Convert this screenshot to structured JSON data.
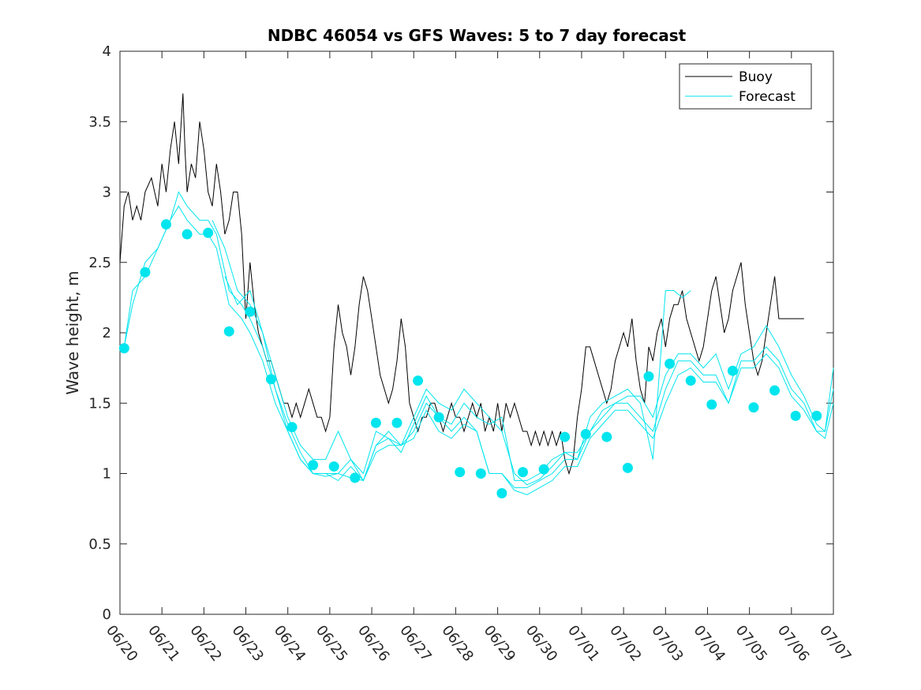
{
  "chart_data": {
    "type": "line",
    "title": "NDBC 46054 vs GFS Waves: 5 to 7 day forecast",
    "xlabel": "",
    "ylabel": "Wave height, m",
    "x_ticks": [
      "06/20",
      "06/21",
      "06/22",
      "06/23",
      "06/24",
      "06/25",
      "06/26",
      "06/27",
      "06/28",
      "06/29",
      "06/30",
      "07/01",
      "07/02",
      "07/03",
      "07/04",
      "07/05",
      "07/06",
      "07/07"
    ],
    "xlim_days": [
      0,
      17
    ],
    "ylim": [
      0,
      4
    ],
    "y_ticks": [
      "0",
      "0.5",
      "1",
      "1.5",
      "2",
      "2.5",
      "3",
      "3.5",
      "4"
    ],
    "legend": {
      "position": "top-right",
      "entries": [
        {
          "name": "Buoy",
          "color": "#000000"
        },
        {
          "name": "Forecast",
          "color": "#00e5ee"
        }
      ]
    },
    "colors": {
      "buoy": "#000000",
      "forecast": "#00e5ee",
      "axes": "#262626"
    },
    "series": [
      {
        "name": "Buoy",
        "x": [
          0,
          0.1,
          0.2,
          0.3,
          0.4,
          0.5,
          0.6,
          0.75,
          0.9,
          1.0,
          1.1,
          1.2,
          1.3,
          1.4,
          1.5,
          1.55,
          1.6,
          1.7,
          1.8,
          1.9,
          2.0,
          2.1,
          2.2,
          2.3,
          2.4,
          2.5,
          2.6,
          2.7,
          2.8,
          2.9,
          3.0,
          3.1,
          3.2,
          3.3,
          3.4,
          3.5,
          3.6,
          3.7,
          3.8,
          3.9,
          4.0,
          4.1,
          4.2,
          4.3,
          4.4,
          4.5,
          4.6,
          4.7,
          4.8,
          4.9,
          5.0,
          5.1,
          5.2,
          5.3,
          5.4,
          5.5,
          5.6,
          5.7,
          5.8,
          5.9,
          6.0,
          6.1,
          6.2,
          6.3,
          6.4,
          6.5,
          6.6,
          6.7,
          6.8,
          6.9,
          7.0,
          7.1,
          7.2,
          7.3,
          7.4,
          7.5,
          7.6,
          7.7,
          7.8,
          7.9,
          8.0,
          8.1,
          8.2,
          8.3,
          8.4,
          8.5,
          8.6,
          8.7,
          8.8,
          8.9,
          9.0,
          9.1,
          9.2,
          9.3,
          9.4,
          9.5,
          9.6,
          9.7,
          9.8,
          9.9,
          10.0,
          10.1,
          10.2,
          10.3,
          10.4,
          10.5,
          10.6,
          10.7,
          10.8,
          10.9,
          11.0,
          11.1,
          11.2,
          11.3,
          11.4,
          11.5,
          11.6,
          11.7,
          11.8,
          11.9,
          12.0,
          12.1,
          12.2,
          12.3,
          12.4,
          12.5,
          12.6,
          12.7,
          12.8,
          12.9,
          13.0,
          13.1,
          13.2,
          13.3,
          13.4,
          13.5,
          13.6,
          13.7,
          13.8,
          13.9,
          14.0,
          14.1,
          14.2,
          14.3,
          14.4,
          14.5,
          14.6,
          14.7,
          14.8,
          14.9,
          15.0,
          15.1,
          15.2,
          15.3,
          15.4,
          15.5,
          15.6,
          15.7,
          15.8,
          15.9,
          16.0,
          16.1,
          16.2,
          16.3
        ],
        "values": [
          2.5,
          2.9,
          3.0,
          2.8,
          2.9,
          2.8,
          3.0,
          3.1,
          2.9,
          3.2,
          3.0,
          3.3,
          3.5,
          3.2,
          3.7,
          3.3,
          3.0,
          3.2,
          3.1,
          3.5,
          3.3,
          3.0,
          2.9,
          3.2,
          3.0,
          2.7,
          2.8,
          3.0,
          3.0,
          2.7,
          2.1,
          2.5,
          2.2,
          2.0,
          1.9,
          1.8,
          1.8,
          1.7,
          1.6,
          1.5,
          1.5,
          1.4,
          1.5,
          1.4,
          1.5,
          1.6,
          1.5,
          1.4,
          1.4,
          1.3,
          1.4,
          1.9,
          2.2,
          2.0,
          1.9,
          1.7,
          1.9,
          2.2,
          2.4,
          2.3,
          2.1,
          1.9,
          1.7,
          1.6,
          1.5,
          1.6,
          1.8,
          2.1,
          1.9,
          1.5,
          1.4,
          1.3,
          1.4,
          1.4,
          1.5,
          1.5,
          1.4,
          1.3,
          1.4,
          1.5,
          1.4,
          1.4,
          1.3,
          1.4,
          1.5,
          1.4,
          1.5,
          1.3,
          1.4,
          1.3,
          1.5,
          1.3,
          1.5,
          1.4,
          1.5,
          1.4,
          1.3,
          1.3,
          1.2,
          1.3,
          1.2,
          1.3,
          1.2,
          1.3,
          1.2,
          1.3,
          1.1,
          1.0,
          1.1,
          1.4,
          1.6,
          1.9,
          1.9,
          1.8,
          1.7,
          1.6,
          1.5,
          1.6,
          1.8,
          1.9,
          2.0,
          1.9,
          2.1,
          1.8,
          1.6,
          1.5,
          1.9,
          1.8,
          2.0,
          2.1,
          1.9,
          2.1,
          2.2,
          2.2,
          2.3,
          2.1,
          2.0,
          1.9,
          1.8,
          1.9,
          2.1,
          2.3,
          2.4,
          2.2,
          2.0,
          2.1,
          2.3,
          2.4,
          2.5,
          2.2,
          2.0,
          1.8,
          1.7,
          1.8,
          2.0,
          2.2,
          2.4,
          2.1,
          2.1,
          2.1,
          2.1,
          2.1,
          2.1,
          2.1
        ]
      },
      {
        "name": "Forecast",
        "x": [
          0.1,
          0.3,
          0.6,
          0.9,
          1.2,
          1.4,
          1.6,
          1.9,
          2.1,
          2.3,
          2.6,
          2.9,
          3.1,
          3.4,
          3.7,
          4.0,
          4.3,
          4.6,
          4.9,
          5.2,
          5.5,
          5.8,
          6.1,
          6.4,
          6.7,
          7.0,
          7.3,
          7.6,
          7.9,
          8.2,
          8.5,
          8.8,
          9.1,
          9.4,
          9.7,
          10.0,
          10.3,
          10.6,
          10.9,
          11.2,
          11.5,
          11.8,
          12.1,
          12.4,
          12.7,
          13.0,
          13.3,
          13.6,
          13.9,
          14.2,
          14.5,
          14.8,
          15.1,
          15.4,
          15.7,
          16.0,
          16.3,
          16.6,
          16.8,
          17.0
        ],
        "values": [
          1.9,
          2.3,
          2.4,
          2.6,
          2.8,
          3.0,
          2.9,
          2.8,
          2.8,
          2.7,
          2.3,
          2.2,
          2.1,
          1.9,
          1.6,
          1.3,
          1.1,
          1.0,
          1.0,
          1.0,
          1.1,
          0.95,
          1.2,
          1.3,
          1.2,
          1.3,
          1.5,
          1.4,
          1.3,
          1.4,
          1.3,
          1.0,
          1.0,
          0.9,
          0.9,
          0.95,
          1.0,
          1.1,
          1.1,
          1.3,
          1.4,
          1.5,
          1.5,
          1.4,
          1.3,
          1.6,
          1.8,
          1.8,
          1.7,
          1.7,
          1.5,
          1.8,
          1.8,
          1.9,
          1.8,
          1.6,
          1.5,
          1.3,
          1.3,
          1.6
        ]
      },
      {
        "name": "Forecast",
        "x": [
          0.1,
          0.3,
          0.6,
          0.9,
          1.2,
          1.4,
          1.6,
          1.9,
          2.1,
          2.3,
          2.6,
          2.9,
          3.1,
          3.4,
          3.7,
          4.0,
          4.3,
          4.6,
          4.9,
          5.2,
          5.5,
          5.8,
          6.1,
          6.4,
          6.7,
          7.0,
          7.3,
          7.6,
          7.9,
          8.2,
          8.5,
          8.8,
          9.1,
          9.4,
          9.7,
          10.0,
          10.3,
          10.6,
          10.9,
          11.2,
          11.5,
          11.8,
          12.1,
          12.4,
          12.7,
          13.0,
          13.3,
          13.6,
          13.9,
          14.2,
          14.5,
          14.8,
          15.1,
          15.4,
          15.7,
          16.0,
          16.3,
          16.6,
          16.8,
          17.0
        ],
        "values": [
          1.9,
          2.2,
          2.5,
          2.6,
          2.8,
          2.9,
          2.8,
          2.7,
          2.7,
          2.6,
          2.2,
          2.1,
          2.0,
          1.8,
          1.5,
          1.3,
          1.1,
          1.0,
          1.0,
          0.95,
          1.05,
          0.95,
          1.15,
          1.2,
          1.2,
          1.25,
          1.45,
          1.3,
          1.25,
          1.35,
          1.3,
          1.0,
          1.0,
          0.88,
          0.85,
          0.9,
          0.95,
          1.05,
          1.05,
          1.25,
          1.35,
          1.45,
          1.45,
          1.35,
          1.25,
          1.5,
          1.7,
          1.75,
          1.65,
          1.65,
          1.5,
          1.75,
          1.75,
          1.85,
          1.75,
          1.55,
          1.45,
          1.3,
          1.25,
          1.5
        ]
      },
      {
        "name": "Forecast",
        "x": [
          2.5,
          2.8,
          3.1,
          3.4,
          3.7,
          4.0,
          4.3,
          4.6,
          4.9,
          5.2,
          5.5,
          5.8,
          6.1,
          6.4,
          6.7,
          7.0,
          7.3,
          7.6,
          7.9,
          8.2,
          8.5,
          8.8,
          9.1,
          9.4,
          9.7,
          10.0,
          10.3,
          10.6,
          10.9,
          11.2,
          11.5,
          11.8,
          12.1,
          12.4,
          12.7,
          13.0,
          13.2,
          13.4,
          13.6
        ],
        "values": [
          2.4,
          2.2,
          2.3,
          2.0,
          1.7,
          1.4,
          1.2,
          1.1,
          1.1,
          1.3,
          1.1,
          1.0,
          1.3,
          1.25,
          1.15,
          1.35,
          1.55,
          1.4,
          1.35,
          1.5,
          1.4,
          1.35,
          1.4,
          0.95,
          0.95,
          1.0,
          1.1,
          1.15,
          1.1,
          1.4,
          1.5,
          1.55,
          1.6,
          1.5,
          1.1,
          2.3,
          2.3,
          2.25,
          2.3
        ]
      },
      {
        "name": "Forecast",
        "x": [
          2.2,
          2.5,
          2.8,
          3.1,
          3.4,
          3.7,
          4.0,
          4.3,
          4.6,
          4.9,
          5.2,
          5.5,
          5.8,
          6.1,
          6.4,
          6.7,
          7.0,
          7.3,
          7.6,
          7.9,
          8.2,
          8.5,
          8.8,
          9.1,
          9.4,
          9.7,
          10.0,
          10.3,
          10.6,
          10.9,
          11.2,
          11.5,
          11.8,
          12.1,
          12.4,
          12.7,
          13.0,
          13.3,
          13.6,
          13.9,
          14.2,
          14.5,
          14.8,
          15.1,
          15.4,
          15.7,
          16.0,
          16.3,
          16.6,
          16.8,
          17.0
        ],
        "values": [
          2.8,
          2.6,
          2.3,
          2.2,
          2.0,
          1.6,
          1.35,
          1.15,
          1.0,
          0.98,
          1.0,
          0.97,
          0.95,
          1.2,
          1.25,
          1.2,
          1.4,
          1.6,
          1.5,
          1.45,
          1.6,
          1.5,
          1.4,
          1.3,
          1.0,
          0.92,
          0.96,
          1.05,
          1.15,
          1.15,
          1.3,
          1.45,
          1.5,
          1.55,
          1.55,
          1.4,
          1.7,
          1.85,
          1.85,
          1.75,
          1.85,
          1.6,
          1.85,
          1.9,
          2.05,
          1.9,
          1.7,
          1.55,
          1.35,
          1.3,
          1.75
        ]
      },
      {
        "name": "Forecast",
        "x": [
          0.1,
          0.6,
          1.1,
          1.6,
          2.1,
          2.6,
          3.1,
          3.6,
          4.1,
          4.6,
          5.1,
          5.6,
          6.1,
          6.6,
          7.1,
          7.6,
          8.1,
          8.6,
          9.1,
          9.6,
          10.1,
          10.6,
          11.1,
          11.6,
          12.1,
          12.6,
          13.1,
          13.6,
          14.1,
          14.6,
          15.1,
          15.6,
          16.1,
          16.6
        ],
        "values": [
          1.89,
          2.43,
          2.77,
          2.7,
          2.71,
          2.01,
          2.15,
          1.67,
          1.33,
          1.06,
          1.05,
          0.97,
          1.36,
          1.36,
          1.66,
          1.4,
          1.01,
          1.0,
          0.86,
          1.01,
          1.03,
          1.26,
          1.28,
          1.26,
          1.04,
          1.69,
          1.78,
          1.66,
          1.49,
          1.73,
          1.47,
          1.59,
          1.41,
          1.41
        ],
        "markers_only": true
      }
    ]
  }
}
